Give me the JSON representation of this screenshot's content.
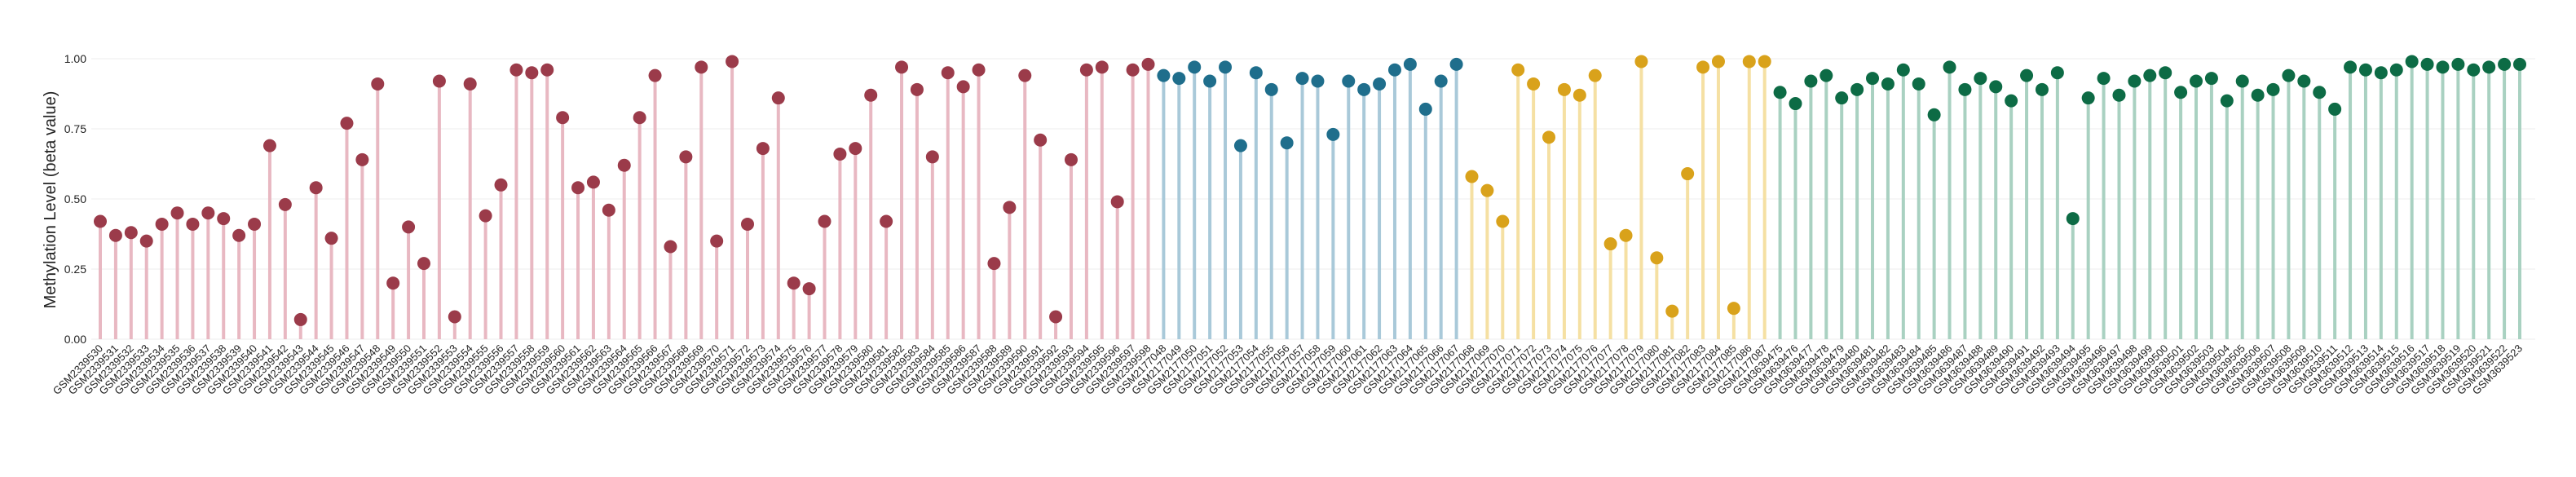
{
  "chart_data": {
    "type": "lollipop",
    "y_label": "Methylation Level (beta value)",
    "ylim": [
      0,
      1.05
    ],
    "yticks": [
      {
        "value": 0,
        "label": "0.00"
      },
      {
        "value": 0.25,
        "label": "0.25"
      },
      {
        "value": 0.5,
        "label": "0.50"
      },
      {
        "value": 0.75,
        "label": "0.75"
      },
      {
        "value": 1,
        "label": "1.00"
      }
    ],
    "grid": true,
    "series": [
      {
        "color": "#9b3b4a",
        "stem_color": "#e8b8c2",
        "categories": [
          "GSM2339530",
          "GSM2339531",
          "GSM2339532",
          "GSM2339533",
          "GSM2339534",
          "GSM2339535",
          "GSM2339536",
          "GSM2339537",
          "GSM2339538",
          "GSM2339539",
          "GSM2339540",
          "GSM2339541",
          "GSM2339542",
          "GSM2339543",
          "GSM2339544",
          "GSM2339545",
          "GSM2339546",
          "GSM2339547",
          "GSM2339548",
          "GSM2339549",
          "GSM2339550",
          "GSM2339551",
          "GSM2339552",
          "GSM2339553",
          "GSM2339554",
          "GSM2339555",
          "GSM2339556",
          "GSM2339557",
          "GSM2339558",
          "GSM2339559",
          "GSM2339560",
          "GSM2339561",
          "GSM2339562",
          "GSM2339563",
          "GSM2339564",
          "GSM2339565",
          "GSM2339566",
          "GSM2339567",
          "GSM2339568",
          "GSM2339569",
          "GSM2339570",
          "GSM2339571",
          "GSM2339572",
          "GSM2339573",
          "GSM2339574",
          "GSM2339575",
          "GSM2339576",
          "GSM2339577",
          "GSM2339578",
          "GSM2339579",
          "GSM2339580",
          "GSM2339581",
          "GSM2339582",
          "GSM2339583",
          "GSM2339584",
          "GSM2339585",
          "GSM2339586",
          "GSM2339587",
          "GSM2339588",
          "GSM2339589",
          "GSM2339590",
          "GSM2339591",
          "GSM2339592",
          "GSM2339593",
          "GSM2339594",
          "GSM2339595",
          "GSM2339596",
          "GSM2339597",
          "GSM2339598"
        ],
        "values": [
          0.42,
          0.37,
          0.38,
          0.35,
          0.41,
          0.45,
          0.41,
          0.45,
          0.43,
          0.37,
          0.41,
          0.69,
          0.48,
          0.07,
          0.54,
          0.36,
          0.77,
          0.64,
          0.91,
          0.2,
          0.4,
          0.27,
          0.92,
          0.08,
          0.91,
          0.44,
          0.55,
          0.96,
          0.95,
          0.96,
          0.79,
          0.54,
          0.56,
          0.46,
          0.62,
          0.79,
          0.94,
          0.33,
          0.65,
          0.97,
          0.35,
          0.99,
          0.41,
          0.68,
          0.86,
          0.2,
          0.18,
          0.42,
          0.66,
          0.68,
          0.87,
          0.42,
          0.97,
          0.89,
          0.65,
          0.95,
          0.9,
          0.96,
          0.27,
          0.47,
          0.94,
          0.71,
          0.08,
          0.64,
          0.96,
          0.97,
          0.49,
          0.96,
          0.98
        ]
      },
      {
        "color": "#1f6e8c",
        "stem_color": "#a9c9d9",
        "categories": [
          "GSM2177048",
          "GSM2177049",
          "GSM2177050",
          "GSM2177051",
          "GSM2177052",
          "GSM2177053",
          "GSM2177054",
          "GSM2177055",
          "GSM2177056",
          "GSM2177057",
          "GSM2177058",
          "GSM2177059",
          "GSM2177060",
          "GSM2177061",
          "GSM2177062",
          "GSM2177063",
          "GSM2177064",
          "GSM2177065",
          "GSM2177066",
          "GSM2177067"
        ],
        "values": [
          0.94,
          0.93,
          0.97,
          0.92,
          0.97,
          0.69,
          0.95,
          0.89,
          0.7,
          0.93,
          0.92,
          0.73,
          0.92,
          0.89,
          0.91,
          0.96,
          0.98,
          0.82,
          0.92,
          0.98
        ]
      },
      {
        "color": "#d9a21b",
        "stem_color": "#f5e0a3",
        "categories": [
          "GSM2177068",
          "GSM2177069",
          "GSM2177070",
          "GSM2177071",
          "GSM2177072",
          "GSM2177073",
          "GSM2177074",
          "GSM2177075",
          "GSM2177076",
          "GSM2177077",
          "GSM2177078",
          "GSM2177079",
          "GSM2177080",
          "GSM2177081",
          "GSM2177082",
          "GSM2177083",
          "GSM2177084",
          "GSM2177085",
          "GSM2177086",
          "GSM2177087"
        ],
        "values": [
          0.58,
          0.53,
          0.42,
          0.96,
          0.91,
          0.72,
          0.89,
          0.87,
          0.94,
          0.34,
          0.37,
          0.99,
          0.29,
          0.1,
          0.59,
          0.97,
          0.99,
          0.11,
          0.99,
          0.99
        ]
      },
      {
        "color": "#0d6b45",
        "stem_color": "#a9d1c1",
        "categories": [
          "GSM3639475",
          "GSM3639476",
          "GSM3639477",
          "GSM3639478",
          "GSM3639479",
          "GSM3639480",
          "GSM3639481",
          "GSM3639482",
          "GSM3639483",
          "GSM3639484",
          "GSM3639485",
          "GSM3639486",
          "GSM3639487",
          "GSM3639488",
          "GSM3639489",
          "GSM3639490",
          "GSM3639491",
          "GSM3639492",
          "GSM3639493",
          "GSM3639494",
          "GSM3639495",
          "GSM3639496",
          "GSM3639497",
          "GSM3639498",
          "GSM3639499",
          "GSM3639500",
          "GSM3639501",
          "GSM3639502",
          "GSM3639503",
          "GSM3639504",
          "GSM3639505",
          "GSM3639506",
          "GSM3639507",
          "GSM3639508",
          "GSM3639509",
          "GSM3639510",
          "GSM3639511",
          "GSM3639512",
          "GSM3639513",
          "GSM3639514",
          "GSM3639515",
          "GSM3639516",
          "GSM3639517",
          "GSM3639518",
          "GSM3639519",
          "GSM3639520",
          "GSM3639521",
          "GSM3639522",
          "GSM3639523"
        ],
        "values": [
          0.88,
          0.84,
          0.92,
          0.94,
          0.86,
          0.89,
          0.93,
          0.91,
          0.96,
          0.91,
          0.8,
          0.97,
          0.89,
          0.93,
          0.9,
          0.85,
          0.94,
          0.89,
          0.95,
          0.43,
          0.86,
          0.93,
          0.87,
          0.92,
          0.94,
          0.95,
          0.88,
          0.92,
          0.93,
          0.85,
          0.92,
          0.87,
          0.89,
          0.94,
          0.92,
          0.88,
          0.82,
          0.97,
          0.96,
          0.95,
          0.96,
          0.99,
          0.98,
          0.97,
          0.98,
          0.96,
          0.97,
          0.98,
          0.98
        ]
      }
    ]
  }
}
